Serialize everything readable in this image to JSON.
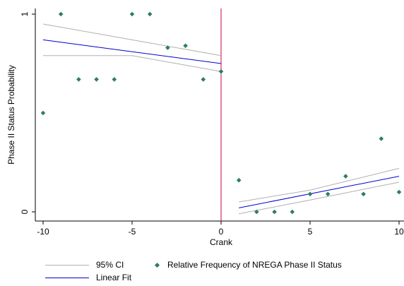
{
  "chart_data": {
    "type": "scatter",
    "xlabel": "Crank",
    "ylabel": "Phase II Status Probability",
    "xlim": [
      -10,
      10
    ],
    "ylim": [
      0,
      1
    ],
    "x_ticks": [
      -10,
      -5,
      0,
      5,
      10
    ],
    "y_ticks": [
      0,
      1
    ],
    "grid": false,
    "cutoff_x": 0,
    "series": [
      {
        "name": "Relative Frequency of NREGA Phase II Status",
        "kind": "points",
        "color": "#2e7d62",
        "x": [
          -10,
          -9,
          -8,
          -7,
          -6,
          -5,
          -4,
          -3,
          -2,
          -1,
          0,
          1,
          2,
          3,
          4,
          5,
          6,
          7,
          8,
          9,
          10
        ],
        "y": [
          0.5,
          1.0,
          0.67,
          0.67,
          0.67,
          1.0,
          1.0,
          0.83,
          0.84,
          0.67,
          0.71,
          0.16,
          0.0,
          0.0,
          0.0,
          0.09,
          0.09,
          0.18,
          0.09,
          0.37,
          0.1
        ]
      },
      {
        "name": "Linear Fit",
        "kind": "line",
        "color": "#0000cc",
        "segments": [
          {
            "x": [
              -10,
              0
            ],
            "y": [
              0.87,
              0.75
            ]
          },
          {
            "x": [
              1,
              10
            ],
            "y": [
              0.02,
              0.18
            ]
          }
        ]
      },
      {
        "name": "95% CI",
        "kind": "band",
        "color": "#b0b0b0",
        "segments": [
          {
            "x": [
              -10,
              -5,
              0
            ],
            "upper": [
              0.95,
              0.87,
              0.79
            ],
            "lower": [
              0.79,
              0.79,
              0.71
            ]
          },
          {
            "x": [
              1,
              5,
              10
            ],
            "upper": [
              0.05,
              0.11,
              0.22
            ],
            "lower": [
              -0.01,
              0.06,
              0.15
            ]
          }
        ]
      }
    ]
  },
  "legend": {
    "ci_label": "95% CI",
    "points_label": "Relative Frequency of NREGA Phase II Status",
    "fit_label": "Linear Fit"
  },
  "colors": {
    "cutoff": "#cc0044",
    "ci": "#b0b0b0",
    "fit": "#0000cc",
    "points": "#2e7d62"
  }
}
